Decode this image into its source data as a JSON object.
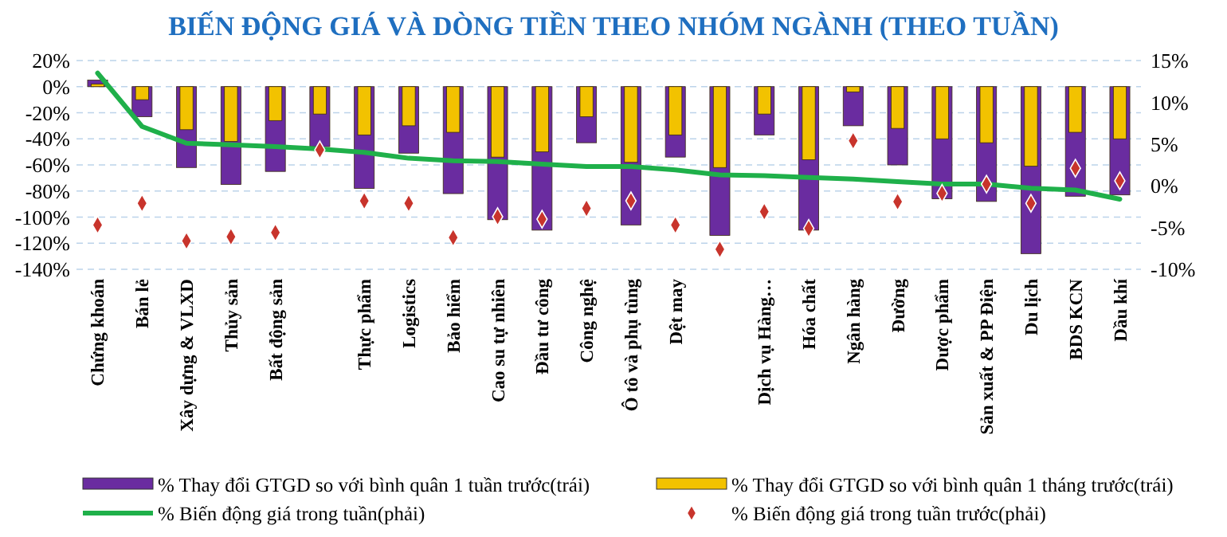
{
  "chart_data": {
    "type": "bar",
    "title": "BIẾN ĐỘNG GIÁ VÀ DÒNG TIỀN THEO NHÓM NGÀNH (THEO TUẦN)",
    "categories": [
      "Chứng khoán",
      "Bán lẻ",
      "Xây dựng & VLXD",
      "Thủy sản",
      "Bất động sản",
      null,
      "Thực phẩm",
      "Logistics",
      "Bảo hiểm",
      "Cao su tự nhiên",
      "Đầu tư công",
      "Công nghệ",
      "Ô tô và phụ tùng",
      "Dệt may",
      null,
      "Dịch vụ Hàng…",
      "Hóa chất",
      "Ngân hàng",
      "Đường",
      "Dược phẩm",
      "Sản xuất & PP Điện",
      "Du lịch",
      "BDS KCN",
      "Dầu khí"
    ],
    "series": [
      {
        "name": "% Thay đổi GTGD so với bình quân 1 tuần trước(trái)",
        "color": "#6a2ca0",
        "values": [
          5,
          -23,
          -62,
          -75,
          -65,
          -46,
          -78,
          -51,
          -82,
          -102,
          -110,
          -43,
          -106,
          -54,
          -114,
          -37,
          -110,
          -30,
          -60,
          -86,
          -88,
          -128,
          -84,
          -83
        ]
      },
      {
        "name": "% Thay đổi GTGD so với bình quân 1 tháng trước(trái)",
        "color": "#f2c200",
        "values": [
          2,
          -10,
          -33,
          -42,
          -26,
          -21,
          -37,
          -30,
          -35,
          -54,
          -50,
          -23,
          -58,
          -37,
          -62,
          -21,
          -56,
          -4,
          -32,
          -40,
          -43,
          -61,
          -35,
          -40
        ]
      },
      {
        "name": "% Biến động giá trong tuần(phải)",
        "type": "line",
        "marker": "none",
        "axis": "y2",
        "color": "#1fb04a",
        "values": [
          13.5,
          7.1,
          5.1,
          4.9,
          4.7,
          4.4,
          4.0,
          3.3,
          3.0,
          2.9,
          2.6,
          2.3,
          2.3,
          1.9,
          1.3,
          1.2,
          1.0,
          0.8,
          0.5,
          0.2,
          0.2,
          -0.3,
          -0.5,
          -1.6
        ]
      },
      {
        "name": "% Biến động giá trong tuần trước(phải)",
        "type": "scatter",
        "axis": "y2",
        "color": "#c8342c",
        "values": [
          -4.7,
          -2.1,
          -6.6,
          -6.1,
          -5.6,
          4.3,
          -1.8,
          -2.1,
          -6.2,
          -3.7,
          -4.0,
          -2.7,
          -1.8,
          -4.7,
          -7.6,
          -3.1,
          -5.1,
          5.4,
          -1.9,
          -0.9,
          0.2,
          -2.1,
          2.1,
          0.6
        ]
      }
    ],
    "marker": "diamond",
    "ylim": [
      -140,
      20
    ],
    "yticks": [
      {
        "value": 20,
        "label": "20%"
      },
      {
        "value": 0,
        "label": "0%"
      },
      {
        "value": -20,
        "label": "-20%"
      },
      {
        "value": -40,
        "label": "-40%"
      },
      {
        "value": -60,
        "label": "-60%"
      },
      {
        "value": -80,
        "label": "-80%"
      },
      {
        "value": -100,
        "label": "-100%"
      },
      {
        "value": -120,
        "label": "-120%"
      },
      {
        "value": -140,
        "label": "-140%"
      }
    ],
    "y2lim": [
      -10,
      15
    ],
    "y2ticks": [
      {
        "value": 15,
        "label": "15%"
      },
      {
        "value": 10,
        "label": "10%"
      },
      {
        "value": 5,
        "label": "5%"
      },
      {
        "value": 0,
        "label": "0%"
      },
      {
        "value": -5,
        "label": "-5%"
      },
      {
        "value": -10,
        "label": "-10%"
      }
    ],
    "grid": "y",
    "legend": "bottom"
  }
}
